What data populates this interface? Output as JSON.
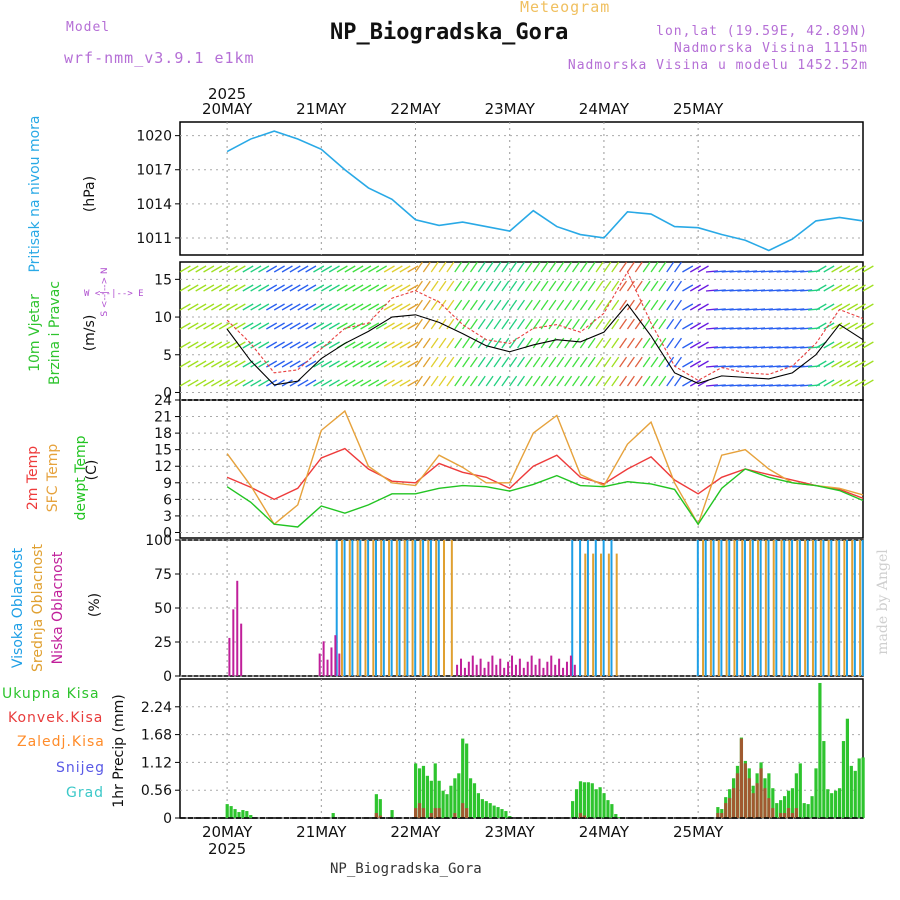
{
  "header": {
    "meteogram_word": "Meteogram",
    "title": "NP_Biogradska_Gora",
    "model_label": "Model",
    "model_name": "wrf-nmm_v3.9.1 e1km",
    "coords": "lon,lat (19.59E, 42.89N)",
    "altitude": "Nadmorska Visina 1115m",
    "model_altitude": "Nadmorska Visina u modelu 1452.52m"
  },
  "footer": {
    "station": "NP_Biogradska_Gora",
    "credit": "made by Angel"
  },
  "axis_dates": {
    "year": "2025",
    "days": [
      "20MAY",
      "21MAY",
      "22MAY",
      "23MAY",
      "24MAY",
      "25MAY"
    ]
  },
  "panel_labels": {
    "pressure": {
      "name": "Pritisak na nivou mora",
      "unit": "(hPa)"
    },
    "wind": {
      "name1": "10m Vjetar",
      "name2": "Brzina i Pravac",
      "unit": "(m/s)",
      "compass": "W <--|--> E",
      "compass_v": "S <--|--> N"
    },
    "temp": {
      "t2m": "2m Temp",
      "sfc": "SFC Temp",
      "dew": "dewpt Temp",
      "unit": "(C)"
    },
    "cloud": {
      "high": "Visoka Oblacnost",
      "mid": "Srednja Oblacnost",
      "low": "Niska Oblacnost",
      "unit": "(%)"
    },
    "precip": {
      "unit": "1hr Precip (mm)",
      "legend": [
        "Ukupna Kisa",
        "Konvek.Kisa",
        "Zaledj.Kisa",
        "Snijeg",
        "Grad"
      ]
    }
  },
  "colors": {
    "pressure": "#29a9e6",
    "t2m": "#ee3b3b",
    "sfc": "#e6a23c",
    "dew": "#22c422",
    "cloud_high": "#1e9fe6",
    "cloud_mid": "#e0a030",
    "cloud_low": "#c01f9a",
    "precip_total": "#2ec42e",
    "precip_conv": "#e83c3c",
    "precip_frz": "#ff8c2a",
    "snow": "#5a5ae6",
    "hail": "#3cc8c8",
    "legend_text": [
      "#2ec42e",
      "#e83c3c",
      "#ff8c2a",
      "#5a5ae6",
      "#3cc8c8"
    ]
  },
  "chart_data": [
    {
      "type": "line",
      "title": "Pritisak na nivou mora",
      "ylabel": "(hPa)",
      "yticks": [
        1011,
        1014,
        1017,
        1020
      ],
      "ylim": [
        1009.5,
        1021.2
      ],
      "x": [
        0,
        6,
        12,
        18,
        24,
        30,
        36,
        42,
        48,
        54,
        60,
        66,
        72,
        78,
        84,
        90,
        96,
        102,
        108,
        114,
        120,
        126,
        132,
        138,
        144,
        150,
        156,
        162
      ],
      "series": [
        {
          "values": [
            1018.6,
            1019.7,
            1020.4,
            1019.7,
            1018.8,
            1017.0,
            1015.4,
            1014.4,
            1012.6,
            1012.1,
            1012.4,
            1012.0,
            1011.6,
            1013.4,
            1012.0,
            1011.3,
            1011.0,
            1013.3,
            1013.1,
            1012.0,
            1011.9,
            1011.3,
            1010.8,
            1009.9,
            1010.9,
            1012.5,
            1012.8,
            1012.5
          ]
        }
      ]
    },
    {
      "type": "line",
      "title": "10m Vjetar Brzina i Pravac",
      "ylabel": "(m/s)",
      "yticks": [
        0,
        5,
        10,
        15
      ],
      "ylim": [
        -1,
        17.3
      ],
      "x": [
        0,
        6,
        12,
        18,
        24,
        30,
        36,
        42,
        48,
        54,
        60,
        66,
        72,
        78,
        84,
        90,
        96,
        102,
        108,
        114,
        120,
        126,
        132,
        138,
        144,
        150,
        156,
        162
      ],
      "series": [
        {
          "values": [
            8.4,
            4.2,
            1.0,
            1.5,
            4.5,
            6.5,
            8.1,
            10.0,
            10.3,
            9.3,
            7.8,
            6.2,
            5.4,
            6.3,
            7.0,
            6.7,
            8.0,
            11.7,
            7.5,
            2.6,
            1.2,
            2.2,
            2.0,
            1.8,
            2.6,
            5.0,
            9.0,
            7.0
          ]
        },
        {
          "values": [
            9.6,
            6.5,
            2.6,
            3.0,
            5.8,
            8.5,
            9.2,
            12.5,
            13.5,
            12.0,
            9.0,
            7.0,
            6.5,
            8.5,
            9.0,
            8.0,
            10.5,
            16.0,
            9.2,
            3.5,
            1.6,
            3.3,
            2.6,
            2.4,
            3.5,
            6.5,
            11.0,
            9.8
          ]
        }
      ]
    },
    {
      "type": "line",
      "title": "",
      "ylabel": "(C)",
      "yticks": [
        0,
        3,
        6,
        9,
        12,
        15,
        18,
        21,
        24
      ],
      "ylim": [
        -1,
        24
      ],
      "x": [
        0,
        6,
        12,
        18,
        24,
        30,
        36,
        42,
        48,
        54,
        60,
        66,
        72,
        78,
        84,
        90,
        96,
        102,
        108,
        114,
        120,
        126,
        132,
        138,
        144,
        150,
        156,
        162
      ],
      "series": [
        {
          "name": "2m Temp",
          "values": [
            10.0,
            8.2,
            6.0,
            8.0,
            13.5,
            15.2,
            11.5,
            9.3,
            9.0,
            12.5,
            10.9,
            10.0,
            8.0,
            12.0,
            14.0,
            10.0,
            8.8,
            11.5,
            13.7,
            9.5,
            7.0,
            10.0,
            11.5,
            10.5,
            9.5,
            8.5,
            7.8,
            6.2
          ]
        },
        {
          "name": "SFC Temp",
          "values": [
            14.3,
            8.5,
            1.5,
            5.0,
            18.5,
            22.0,
            12.0,
            9.0,
            8.5,
            14.0,
            11.8,
            9.0,
            9.0,
            18.0,
            21.2,
            10.5,
            8.5,
            16.0,
            20.0,
            9.0,
            1.5,
            14.0,
            15.0,
            11.5,
            9.0,
            8.5,
            8.0,
            6.8
          ]
        },
        {
          "name": "dewpt Temp",
          "values": [
            8.3,
            5.5,
            1.5,
            1.0,
            4.8,
            3.5,
            5.0,
            7.0,
            7.0,
            8.0,
            8.5,
            8.3,
            7.5,
            8.7,
            10.3,
            8.5,
            8.3,
            9.2,
            8.8,
            7.8,
            1.5,
            8.0,
            11.5,
            10.0,
            9.0,
            8.5,
            7.6,
            5.8
          ]
        }
      ]
    },
    {
      "type": "bar",
      "title": "Oblacnost",
      "ylabel": "(%)",
      "yticks": [
        0,
        25,
        50,
        75,
        100
      ],
      "ylim": [
        0,
        100
      ],
      "series": [
        {
          "name": "Visoka Oblacnost",
          "segments": [
            {
              "from": 28,
              "to": 55,
              "value": 100
            },
            {
              "from": 88,
              "to": 99,
              "value": 100
            },
            {
              "from": 120,
              "to": 162,
              "value": 100
            }
          ]
        },
        {
          "name": "Srednja Oblacnost",
          "segments": [
            {
              "from": 28,
              "to": 57,
              "value": 100
            },
            {
              "from": 91,
              "to": 99,
              "value": 90
            },
            {
              "from": 120,
              "to": 162,
              "value": 100
            }
          ]
        },
        {
          "name": "Niska Oblacnost",
          "segments": [
            {
              "from": 0,
              "to": 3,
              "value": 70
            },
            {
              "from": 23,
              "to": 28,
              "value": 30
            },
            {
              "from": 58,
              "to": 88,
              "value": 15
            }
          ]
        }
      ]
    },
    {
      "type": "bar",
      "title": "1hr Precip (mm)",
      "ylabel": "1hr Precip (mm)",
      "yticks": [
        0,
        0.56,
        1.12,
        1.68,
        2.24
      ],
      "ylim": [
        0,
        2.8
      ],
      "x": [
        0,
        1,
        2,
        3,
        4,
        5,
        6,
        27,
        38,
        39,
        42,
        48,
        49,
        50,
        51,
        52,
        53,
        54,
        55,
        56,
        57,
        58,
        59,
        60,
        61,
        62,
        63,
        64,
        65,
        66,
        67,
        68,
        69,
        70,
        71,
        72,
        88,
        89,
        90,
        91,
        92,
        93,
        94,
        95,
        96,
        97,
        98,
        99,
        100,
        125,
        126,
        127,
        128,
        129,
        130,
        131,
        132,
        133,
        134,
        135,
        136,
        137,
        138,
        139,
        140,
        141,
        142,
        143,
        144,
        145,
        146,
        147,
        148,
        149,
        150,
        151,
        152,
        153,
        154,
        155,
        156,
        157,
        158,
        159,
        160,
        161,
        162
      ],
      "total": [
        0.28,
        0.24,
        0.18,
        0.12,
        0.16,
        0.14,
        0.06,
        0.1,
        0.48,
        0.38,
        0.16,
        1.1,
        1.0,
        1.05,
        0.85,
        0.75,
        1.1,
        0.75,
        0.55,
        0.48,
        0.65,
        0.8,
        0.9,
        1.6,
        1.5,
        0.8,
        0.7,
        0.5,
        0.38,
        0.34,
        0.3,
        0.25,
        0.22,
        0.18,
        0.14,
        0.04,
        0.34,
        0.58,
        0.74,
        0.72,
        0.72,
        0.7,
        0.58,
        0.62,
        0.5,
        0.36,
        0.28,
        0.08,
        0.02,
        0.22,
        0.18,
        0.42,
        0.58,
        0.8,
        1.05,
        1.62,
        1.15,
        1.0,
        0.65,
        0.9,
        1.12,
        0.8,
        0.9,
        0.6,
        0.3,
        0.36,
        0.44,
        0.55,
        0.6,
        0.9,
        1.1,
        0.3,
        0.28,
        0.44,
        1.0,
        2.72,
        1.55,
        0.58,
        0.5,
        0.55,
        0.6,
        1.55,
        2.0,
        1.05,
        0.95,
        1.2,
        1.22
      ],
      "convective": [
        0,
        0,
        0,
        0,
        0,
        0,
        0,
        0,
        0.1,
        0.05,
        0,
        0.2,
        0.3,
        0.2,
        0,
        0.1,
        0.2,
        0.2,
        0,
        0,
        0,
        0.1,
        0,
        0.3,
        0.2,
        0,
        0,
        0,
        0,
        0,
        0,
        0,
        0,
        0,
        0,
        0,
        0,
        0,
        0.1,
        0.05,
        0,
        0,
        0,
        0,
        0,
        0,
        0,
        0,
        0,
        0.1,
        0.1,
        0.3,
        0.4,
        0.6,
        0.9,
        1.6,
        1.1,
        0.8,
        0.5,
        0.7,
        1.0,
        0.6,
        0.4,
        0.2,
        0,
        0.1,
        0.1,
        0.2,
        0.1,
        0.2,
        0,
        0,
        0,
        0,
        0,
        0,
        0,
        0,
        0,
        0,
        0,
        0,
        0,
        0,
        0,
        0,
        0
      ]
    }
  ]
}
